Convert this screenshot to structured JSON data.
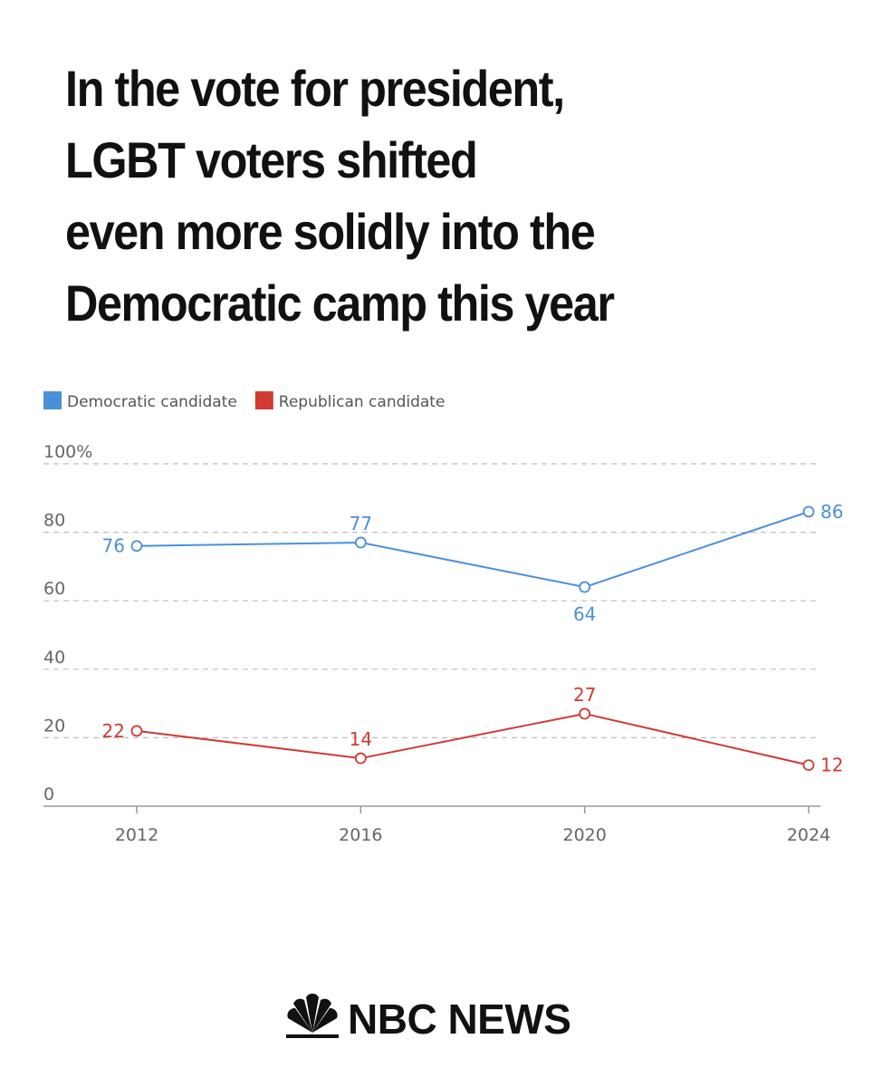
{
  "headline": {
    "lines": [
      "In the vote for president,",
      "LGBT voters shifted",
      "even more solidly into the",
      "Democratic camp this year"
    ]
  },
  "brand": {
    "text": "NBC NEWS",
    "icon": "peacock-icon",
    "peacock_colors": [
      "#111111",
      "#111111",
      "#111111",
      "#111111",
      "#111111",
      "#111111"
    ]
  },
  "chart_data": {
    "type": "line",
    "title": "In the vote for president, LGBT voters shifted even more solidly into the Democratic camp this year",
    "xlabel": "",
    "ylabel": "",
    "categories": [
      "2012",
      "2016",
      "2020",
      "2024"
    ],
    "ylim": [
      0,
      100
    ],
    "yticks": [
      0,
      20,
      40,
      60,
      80,
      100
    ],
    "ytick_labels": [
      "0",
      "20",
      "40",
      "60",
      "80",
      "100%"
    ],
    "grid": true,
    "legend": "top-left",
    "series": [
      {
        "name": "Democratic candidate",
        "color": "#4a90d9",
        "values": [
          76,
          77,
          64,
          86
        ],
        "labels": [
          "76",
          "77",
          "64",
          "86"
        ],
        "label_positions": [
          "left",
          "above",
          "below",
          "right"
        ]
      },
      {
        "name": "Republican candidate",
        "color": "#d03b34",
        "values": [
          22,
          14,
          27,
          12
        ],
        "labels": [
          "22",
          "14",
          "27",
          "12"
        ],
        "label_positions": [
          "left",
          "above",
          "above",
          "right"
        ]
      }
    ]
  }
}
